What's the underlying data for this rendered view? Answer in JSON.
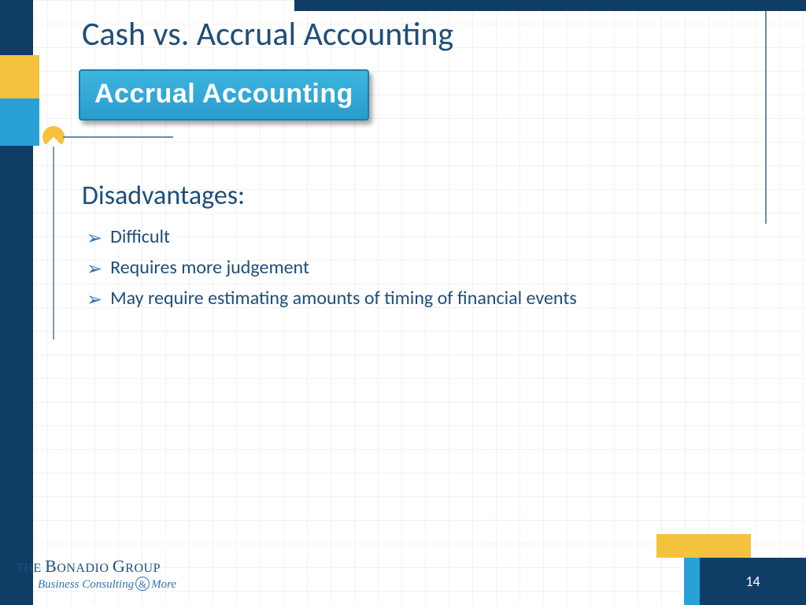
{
  "colors": {
    "navy": "#0f3d66",
    "text_navy": "#1f4e79",
    "accent_blue": "#2e74b5",
    "light_blue": "#29a1d8",
    "yellow": "#f4c23c",
    "banner_top": "#3db6e0",
    "banner_bottom": "#2a9ccd",
    "banner_border": "#1f7ca6",
    "grid": "#e8e8e8",
    "white": "#ffffff"
  },
  "title": "Cash vs. Accrual Accounting",
  "banner": "Accrual Accounting",
  "section": "Disadvantages:",
  "bullets": [
    "Difficult",
    "Requires more judgement",
    "May require estimating amounts of timing of financial events"
  ],
  "page_number": "14",
  "logo": {
    "line1_the": "THE ",
    "line1_b": "B",
    "line1_onadio": "ONADIO ",
    "line1_g": "G",
    "line1_roup": "ROUP",
    "sub_left": "Business Consulting",
    "sub_amp": "&",
    "sub_right": "More"
  }
}
